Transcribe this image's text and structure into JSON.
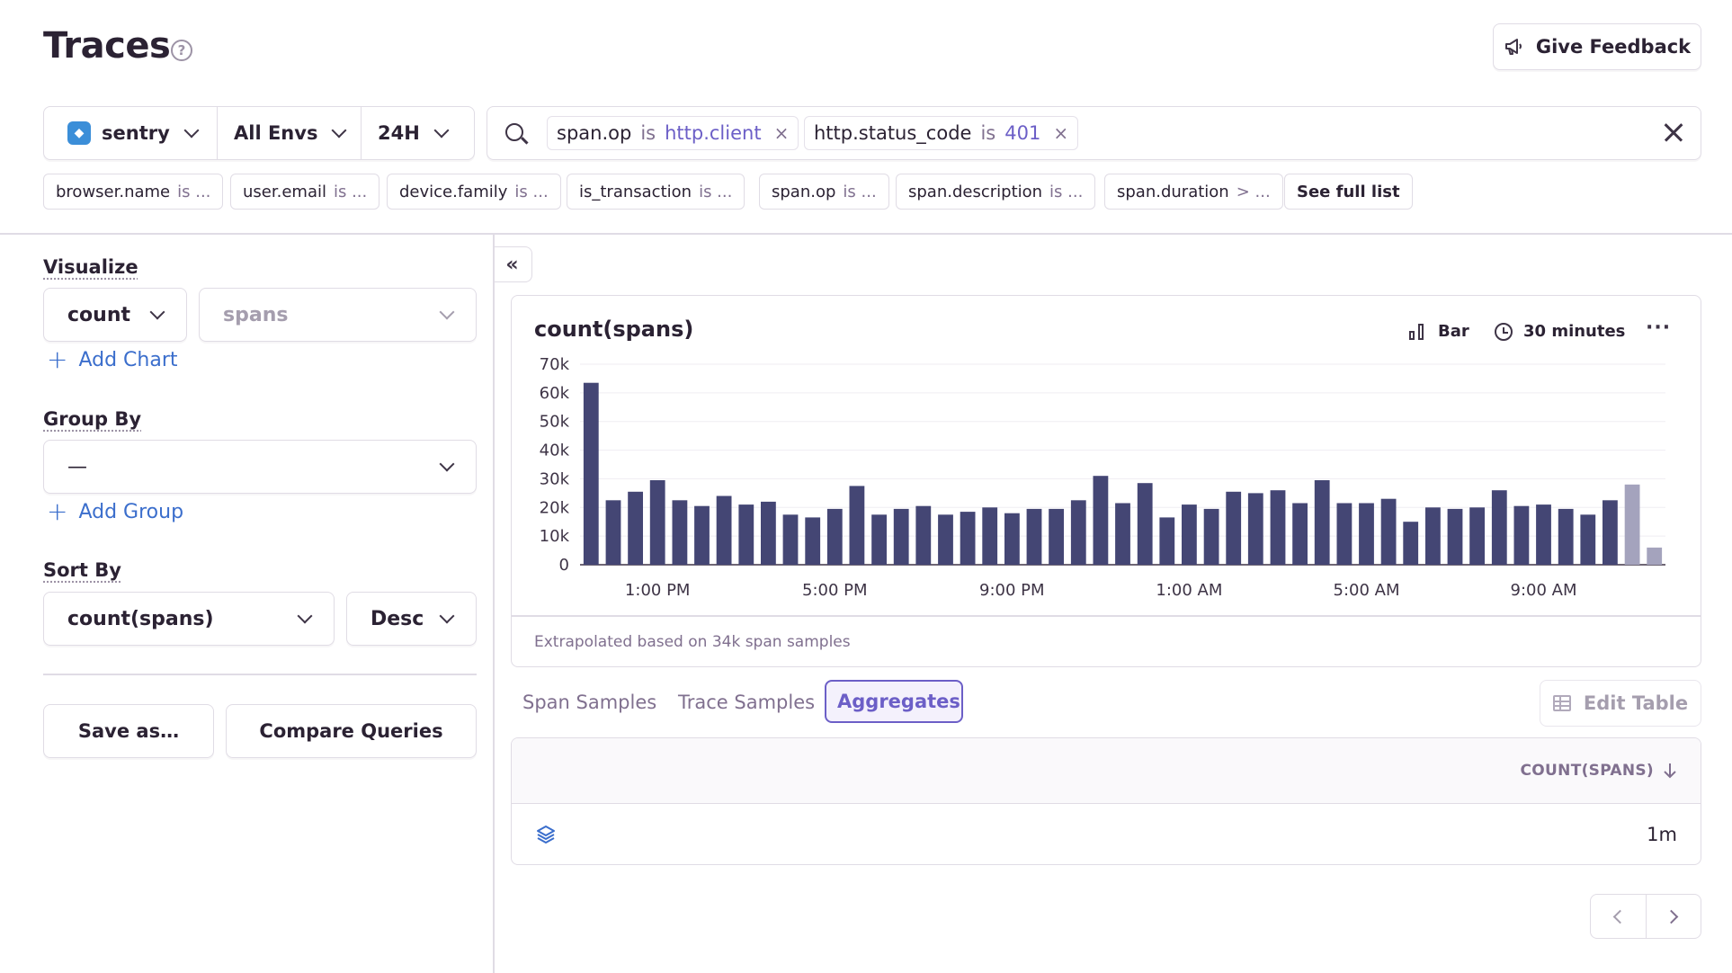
{
  "page": {
    "title": "Traces",
    "feedback_label": "Give Feedback"
  },
  "selectors": {
    "project": "sentry",
    "environment": "All Envs",
    "period": "24H"
  },
  "search": {
    "tokens": [
      {
        "key": "span.op",
        "op": "is",
        "value": "http.client"
      },
      {
        "key": "http.status_code",
        "op": "is",
        "value": "401"
      }
    ]
  },
  "chips": [
    {
      "key": "browser.name",
      "op": "is ..."
    },
    {
      "key": "user.email",
      "op": "is ..."
    },
    {
      "key": "device.family",
      "op": "is ..."
    },
    {
      "key": "is_transaction",
      "op": "is ..."
    },
    {
      "key": "span.op",
      "op": "is ..."
    },
    {
      "key": "span.description",
      "op": "is ..."
    },
    {
      "key": "span.duration",
      "op": "> ..."
    },
    {
      "key": "See full list",
      "op": ""
    }
  ],
  "left_panel": {
    "visualize_label": "Visualize",
    "visualize_function": "count",
    "visualize_field": "spans",
    "add_chart": "Add Chart",
    "group_by_label": "Group By",
    "group_by_value": "—",
    "add_group": "Add Group",
    "sort_by_label": "Sort By",
    "sort_field": "count(spans)",
    "sort_order": "Desc",
    "save_as": "Save as…",
    "compare": "Compare Queries"
  },
  "chart": {
    "title": "count(spans)",
    "type_label": "Bar",
    "interval_label": "30 minutes",
    "more": "···",
    "footer": "Extrapolated based on 34k span samples"
  },
  "chart_data": {
    "type": "bar",
    "title": "count(spans)",
    "ylim": [
      0,
      70000
    ],
    "y_ticks": [
      "0",
      "10k",
      "20k",
      "30k",
      "40k",
      "50k",
      "60k",
      "70k"
    ],
    "x_tick_labels": [
      "1:00 PM",
      "5:00 PM",
      "9:00 PM",
      "1:00 AM",
      "5:00 AM",
      "9:00 AM"
    ],
    "values": [
      63500,
      22500,
      25500,
      29500,
      22500,
      20500,
      24000,
      21000,
      22000,
      17500,
      16500,
      19500,
      27500,
      17500,
      19500,
      20500,
      17500,
      18500,
      20000,
      18000,
      19500,
      19500,
      22500,
      31000,
      21500,
      28500,
      16500,
      21000,
      19500,
      25500,
      25000,
      26000,
      21500,
      29500,
      21500,
      21500,
      23000,
      15000,
      20000,
      19500,
      20000,
      26000,
      20500,
      21000,
      19500,
      17500,
      22500,
      28000,
      6000
    ],
    "bar_color": "#444674",
    "partial_color": "#a4a3bd"
  },
  "tabs": [
    "Span Samples",
    "Trace Samples",
    "Aggregates"
  ],
  "active_tab": "Aggregates",
  "edit_table": "Edit Table",
  "table": {
    "column": "COUNT(SPANS)",
    "rows": [
      {
        "value": "1m"
      }
    ]
  }
}
